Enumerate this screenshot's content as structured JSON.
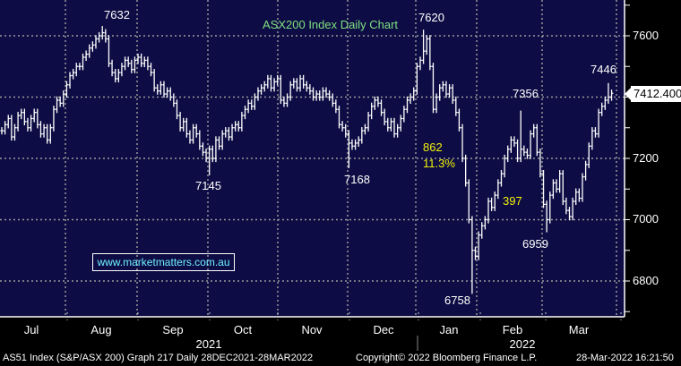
{
  "chart_data": {
    "type": "ohlc-bar",
    "title": "ASX200 Index Daily Chart",
    "ylim": [
      6700,
      7800
    ],
    "yticks": [
      6800,
      7000,
      7200,
      7400,
      7600
    ],
    "grid": true,
    "x_months": [
      "Jul",
      "Aug",
      "Sep",
      "Oct",
      "Nov",
      "Dec",
      "Jan",
      "Feb",
      "Mar"
    ],
    "x_years": [
      "2021",
      "2022"
    ],
    "closes": [
      7290,
      7310,
      7330,
      7270,
      7300,
      7340,
      7350,
      7320,
      7300,
      7330,
      7350,
      7310,
      7280,
      7300,
      7260,
      7300,
      7360,
      7390,
      7380,
      7410,
      7440,
      7470,
      7480,
      7500,
      7500,
      7530,
      7540,
      7560,
      7570,
      7590,
      7600,
      7610,
      7590,
      7510,
      7480,
      7460,
      7480,
      7500,
      7520,
      7510,
      7490,
      7520,
      7530,
      7510,
      7520,
      7500,
      7480,
      7430,
      7420,
      7440,
      7410,
      7420,
      7400,
      7380,
      7340,
      7300,
      7320,
      7280,
      7260,
      7300,
      7280,
      7240,
      7220,
      7200,
      7230,
      7200,
      7260,
      7240,
      7280,
      7290,
      7270,
      7300,
      7310,
      7300,
      7340,
      7360,
      7380,
      7370,
      7400,
      7420,
      7430,
      7440,
      7460,
      7430,
      7450,
      7460,
      7390,
      7380,
      7400,
      7440,
      7450,
      7430,
      7460,
      7440,
      7430,
      7420,
      7400,
      7410,
      7400,
      7420,
      7410,
      7400,
      7380,
      7360,
      7310,
      7300,
      7280,
      7250,
      7240,
      7250,
      7260,
      7290,
      7300,
      7340,
      7370,
      7390,
      7380,
      7350,
      7320,
      7300,
      7320,
      7280,
      7300,
      7330,
      7360,
      7390,
      7400,
      7420,
      7500,
      7520,
      7550,
      7590,
      7500,
      7360,
      7400,
      7430,
      7440,
      7410,
      7430,
      7390,
      7350,
      7300,
      7200,
      7120,
      7000,
      6900,
      6880,
      6950,
      6980,
      7000,
      7060,
      7040,
      7080,
      7120,
      7150,
      7200,
      7230,
      7260,
      7250,
      7200,
      7230,
      7220,
      7210,
      7280,
      7300,
      7220,
      7150,
      7050,
      7000,
      7080,
      7120,
      7100,
      7150,
      7060,
      7030,
      7010,
      7060,
      7090,
      7070,
      7140,
      7180,
      7240,
      7290,
      7280,
      7350,
      7370,
      7390,
      7400,
      7412.4
    ],
    "annotations": [
      {
        "index": 31,
        "value": 7632,
        "label": "7632",
        "kind": "high"
      },
      {
        "index": 64,
        "value": 7145,
        "label": "7145",
        "kind": "low"
      },
      {
        "index": 107,
        "value": 7168,
        "label": "7168",
        "kind": "low"
      },
      {
        "index": 130,
        "value": 7620,
        "label": "7620",
        "kind": "high"
      },
      {
        "index": 145,
        "value": 6758,
        "label": "6758",
        "kind": "low"
      },
      {
        "index": 160,
        "value": 7356,
        "label": "7356",
        "kind": "high"
      },
      {
        "index": 168,
        "value": 6959,
        "label": "6959",
        "kind": "low"
      },
      {
        "index": 187,
        "value": 7446,
        "label": "7446",
        "kind": "high"
      }
    ],
    "drop_points": "862",
    "drop_percent": "11.3%",
    "rebound_points": "397",
    "last_price": "7412.400"
  },
  "watermark": "www.marketmatters.com.au",
  "footer": {
    "left": "AS51 Index (S&P/ASX 200) Graph 217  Daily 28DEC2021-28MAR2022",
    "center": "Copyright© 2022 Bloomberg Finance L.P.",
    "right": "28-Mar-2022 16:21:50"
  },
  "colors": {
    "background": "#0d0c44",
    "bars": "#ffffff",
    "title": "#7fe07f",
    "highlight": "#f2f20a",
    "watermark": "#6ff0ff"
  }
}
